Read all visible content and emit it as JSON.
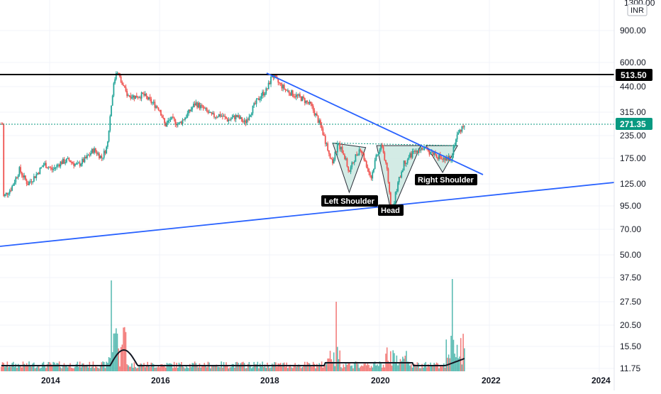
{
  "chart_data": {
    "type": "candlestick",
    "currency": "INR",
    "top_tick": "1300.00",
    "price_ticks": [
      "900.00",
      "600.00",
      "440.00",
      "315.00",
      "235.00",
      "175.00",
      "125.00",
      "95.00",
      "70.00",
      "50.00"
    ],
    "volume_ticks": [
      "37.50",
      "27.50",
      "20.50",
      "15.50",
      "11.75"
    ],
    "x_labels": [
      "2014",
      "2016",
      "2018",
      "2020",
      "2022",
      "2024"
    ],
    "resistance_level": "513.50",
    "last_price": "271.35",
    "pattern_labels": [
      "Left Shoulder",
      "Head",
      "Right Shoulder"
    ],
    "colors": {
      "up": "#26a69a",
      "down": "#ef5350",
      "trendline": "#2962ff",
      "resistance": "#000000",
      "last_price": "#089981",
      "pattern_fill": "#cfe9e3",
      "label_bg": "#000000"
    },
    "price_path": [
      [
        2013.15,
        105
      ],
      [
        2013.3,
        118
      ],
      [
        2013.45,
        150
      ],
      [
        2013.6,
        125
      ],
      [
        2013.75,
        140
      ],
      [
        2013.9,
        162
      ],
      [
        2014.05,
        150
      ],
      [
        2014.2,
        165
      ],
      [
        2014.35,
        170
      ],
      [
        2014.5,
        158
      ],
      [
        2014.65,
        172
      ],
      [
        2014.8,
        195
      ],
      [
        2014.95,
        175
      ],
      [
        2015.05,
        205
      ],
      [
        2015.1,
        300
      ],
      [
        2015.15,
        420
      ],
      [
        2015.22,
        555
      ],
      [
        2015.3,
        465
      ],
      [
        2015.4,
        400
      ],
      [
        2015.55,
        385
      ],
      [
        2015.7,
        395
      ],
      [
        2015.85,
        360
      ],
      [
        2016.0,
        330
      ],
      [
        2016.1,
        265
      ],
      [
        2016.2,
        290
      ],
      [
        2016.35,
        270
      ],
      [
        2016.5,
        305
      ],
      [
        2016.65,
        355
      ],
      [
        2016.8,
        330
      ],
      [
        2016.95,
        300
      ],
      [
        2017.1,
        305
      ],
      [
        2017.25,
        285
      ],
      [
        2017.4,
        300
      ],
      [
        2017.55,
        275
      ],
      [
        2017.7,
        335
      ],
      [
        2017.85,
        395
      ],
      [
        2017.95,
        420
      ],
      [
        2018.05,
        510
      ],
      [
        2018.15,
        465
      ],
      [
        2018.3,
        420
      ],
      [
        2018.45,
        395
      ],
      [
        2018.6,
        375
      ],
      [
        2018.75,
        345
      ],
      [
        2018.85,
        300
      ],
      [
        2018.95,
        255
      ],
      [
        2019.05,
        200
      ],
      [
        2019.15,
        165
      ],
      [
        2019.25,
        210
      ],
      [
        2019.35,
        185
      ],
      [
        2019.45,
        145
      ],
      [
        2019.55,
        175
      ],
      [
        2019.65,
        200
      ],
      [
        2019.75,
        165
      ],
      [
        2019.85,
        135
      ],
      [
        2019.95,
        185
      ],
      [
        2020.05,
        205
      ],
      [
        2020.15,
        140
      ],
      [
        2020.22,
        85
      ],
      [
        2020.32,
        120
      ],
      [
        2020.45,
        165
      ],
      [
        2020.6,
        185
      ],
      [
        2020.75,
        200
      ],
      [
        2020.9,
        190
      ],
      [
        2021.0,
        185
      ],
      [
        2021.1,
        175
      ],
      [
        2021.2,
        170
      ],
      [
        2021.3,
        175
      ],
      [
        2021.4,
        230
      ],
      [
        2021.5,
        260
      ],
      [
        2021.55,
        271
      ]
    ]
  }
}
